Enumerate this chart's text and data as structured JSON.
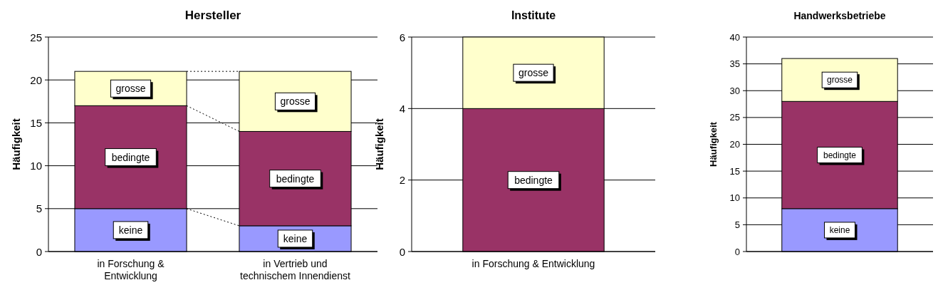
{
  "chart_data": [
    {
      "type": "bar",
      "title": "Hersteller",
      "ylabel": "Häufigkeit",
      "categories": [
        "in Forschung & Entwicklung",
        "in Vertrieb und technischem Innendienst"
      ],
      "stacked": true,
      "ylim": [
        0,
        25
      ],
      "yticks": [
        0,
        5,
        10,
        15,
        20,
        25
      ],
      "grid": "y",
      "series": [
        {
          "name": "keine",
          "color": "#9999ff",
          "values": [
            5,
            3
          ]
        },
        {
          "name": "bedingte",
          "color": "#993366",
          "values": [
            12,
            11
          ]
        },
        {
          "name": "grosse",
          "color": "#ffffcc",
          "values": [
            4,
            7
          ]
        }
      ]
    },
    {
      "type": "bar",
      "title": "Institute",
      "ylabel": "Häufigkeit",
      "categories": [
        "in Forschung & Entwicklung"
      ],
      "stacked": true,
      "ylim": [
        0,
        6
      ],
      "yticks": [
        0,
        2,
        4,
        6
      ],
      "grid": "y",
      "series": [
        {
          "name": "bedingte",
          "color": "#993366",
          "values": [
            4
          ]
        },
        {
          "name": "grosse",
          "color": "#ffffcc",
          "values": [
            2
          ]
        }
      ]
    },
    {
      "type": "bar",
      "title": "Handwerksbetriebe",
      "ylabel": "Häufigkeit",
      "categories": [
        null
      ],
      "stacked": true,
      "ylim": [
        0,
        40
      ],
      "yticks": [
        0,
        5,
        10,
        15,
        20,
        25,
        30,
        35,
        40
      ],
      "grid": "y",
      "series": [
        {
          "name": "keine",
          "color": "#9999ff",
          "values": [
            8
          ]
        },
        {
          "name": "bedingte",
          "color": "#993366",
          "values": [
            20
          ]
        },
        {
          "name": "grosse",
          "color": "#ffffcc",
          "values": [
            8
          ]
        }
      ]
    }
  ]
}
